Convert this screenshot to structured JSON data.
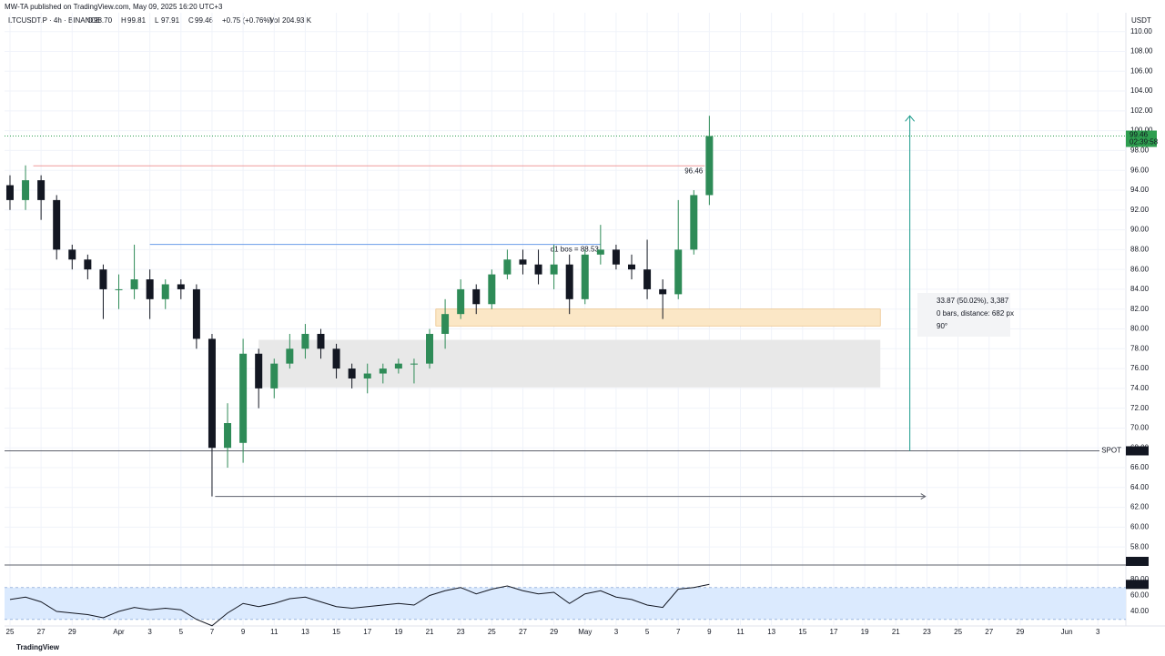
{
  "chart_data": {
    "type": "candlestick",
    "header": {
      "publisher": "MW-TA published on TradingView.com, May 09, 2025 16:20 UTC+3",
      "symbol": "LTCUSDT.P · 4h · BINANCE",
      "ohlc": [
        {
          "key": "O",
          "value": "98.70"
        },
        {
          "key": "H",
          "value": "99.81"
        },
        {
          "key": "L",
          "value": "97.91"
        },
        {
          "key": "C",
          "value": "99.46"
        }
      ],
      "change": "+0.75 (+0.76%)",
      "volume": {
        "key": "Vol",
        "value": "204.93 K"
      }
    },
    "currency": "USDT",
    "footer": "TradingView",
    "up_color": "#2e8b57",
    "down_color": "#131722",
    "x": [
      0,
      1,
      2,
      3,
      4,
      5,
      6,
      7,
      8,
      9,
      10,
      11,
      12,
      13,
      14,
      15,
      16,
      17,
      18,
      19,
      20,
      21,
      22,
      23,
      24,
      25,
      26,
      27,
      28,
      29,
      30,
      31,
      32,
      33,
      34,
      35,
      36,
      37,
      38,
      39,
      40,
      41,
      42,
      43,
      44,
      45
    ],
    "open": [
      94.5,
      93,
      95,
      93,
      88,
      87,
      86,
      84,
      84,
      85,
      83,
      84.5,
      84,
      79,
      68,
      68.5,
      77.5,
      74,
      76.5,
      78,
      79.5,
      78,
      76,
      75,
      75.5,
      76,
      76.5,
      76.5,
      79.5,
      81.5,
      84,
      82.5,
      85.5,
      87,
      86.5,
      85.5,
      86.5,
      83,
      87.5,
      88,
      86.5,
      86,
      84,
      83.5,
      88,
      93.5
    ],
    "high": [
      95.5,
      96.5,
      95.5,
      93.5,
      88.5,
      87.5,
      86.5,
      85.5,
      88.5,
      86,
      85,
      85,
      84.5,
      79.5,
      72.5,
      79,
      78,
      77,
      79.5,
      80.5,
      80,
      78.5,
      76.5,
      76.5,
      76.5,
      77,
      77,
      80,
      83,
      85,
      84.5,
      86,
      88,
      88,
      88,
      88.5,
      87.5,
      88,
      90.5,
      88.5,
      87.5,
      89,
      85,
      93,
      94,
      101.5
    ],
    "low": [
      92,
      92,
      91,
      87,
      86,
      85,
      81,
      82,
      83,
      81,
      82,
      83,
      78,
      63.1,
      66,
      66.5,
      72,
      73,
      76,
      77,
      77,
      75,
      74,
      73.5,
      74.5,
      75.5,
      74.5,
      76,
      78,
      81,
      81.5,
      82,
      85,
      85.5,
      84.5,
      84,
      81.5,
      82.5,
      86.5,
      86,
      85,
      83,
      81,
      83,
      87.5,
      92.5
    ],
    "close": [
      93,
      95,
      93,
      88,
      87,
      86,
      84,
      84,
      85,
      83,
      84.5,
      84,
      79,
      68,
      70.5,
      77.5,
      74,
      76.5,
      78,
      79.5,
      78,
      76,
      75,
      75.5,
      76,
      76.5,
      76.5,
      79.5,
      81.5,
      84,
      82.5,
      85.5,
      87,
      86.5,
      85.5,
      86.5,
      83,
      87.5,
      88,
      86.5,
      86,
      84,
      83.5,
      88,
      93.5,
      99.46
    ],
    "xlim": [
      -0.35,
      71.8
    ],
    "xticks": [
      {
        "value": 0,
        "label": "25"
      },
      {
        "value": 2,
        "label": "27"
      },
      {
        "value": 4,
        "label": "29"
      },
      {
        "value": 7,
        "label": "Apr"
      },
      {
        "value": 9,
        "label": "3"
      },
      {
        "value": 11,
        "label": "5"
      },
      {
        "value": 13,
        "label": "7"
      },
      {
        "value": 15,
        "label": "9"
      },
      {
        "value": 17,
        "label": "11"
      },
      {
        "value": 19,
        "label": "13"
      },
      {
        "value": 21,
        "label": "15"
      },
      {
        "value": 23,
        "label": "17"
      },
      {
        "value": 25,
        "label": "19"
      },
      {
        "value": 27,
        "label": "21"
      },
      {
        "value": 29,
        "label": "23"
      },
      {
        "value": 31,
        "label": "25"
      },
      {
        "value": 33,
        "label": "27"
      },
      {
        "value": 35,
        "label": "29"
      },
      {
        "value": 37,
        "label": "May"
      },
      {
        "value": 39,
        "label": "3"
      },
      {
        "value": 41,
        "label": "5"
      },
      {
        "value": 43,
        "label": "7"
      },
      {
        "value": 45,
        "label": "9"
      },
      {
        "value": 47,
        "label": "11"
      },
      {
        "value": 49,
        "label": "13"
      },
      {
        "value": 51,
        "label": "15"
      },
      {
        "value": 53,
        "label": "17"
      },
      {
        "value": 55,
        "label": "19"
      },
      {
        "value": 57,
        "label": "21"
      },
      {
        "value": 59,
        "label": "23"
      },
      {
        "value": 61,
        "label": "25"
      },
      {
        "value": 63,
        "label": "27"
      },
      {
        "value": 65,
        "label": "29"
      },
      {
        "value": 68,
        "label": "Jun"
      },
      {
        "value": 70,
        "label": "3"
      }
    ],
    "ylim": [
      56.18,
      111.9
    ],
    "yticks": [
      {
        "value": 58,
        "label": "58.00"
      },
      {
        "value": 60,
        "label": "60.00"
      },
      {
        "value": 62,
        "label": "62.00"
      },
      {
        "value": 64,
        "label": "64.00"
      },
      {
        "value": 66,
        "label": "66.00"
      },
      {
        "value": 68,
        "label": "68.00"
      },
      {
        "value": 70,
        "label": "70.00"
      },
      {
        "value": 72,
        "label": "72.00"
      },
      {
        "value": 74,
        "label": "74.00"
      },
      {
        "value": 76,
        "label": "76.00"
      },
      {
        "value": 78,
        "label": "78.00"
      },
      {
        "value": 80,
        "label": "80.00"
      },
      {
        "value": 82,
        "label": "82.00"
      },
      {
        "value": 84,
        "label": "84.00"
      },
      {
        "value": 86,
        "label": "86.00"
      },
      {
        "value": 88,
        "label": "88.00"
      },
      {
        "value": 90,
        "label": "90.00"
      },
      {
        "value": 92,
        "label": "92.00"
      },
      {
        "value": 94,
        "label": "94.00"
      },
      {
        "value": 96,
        "label": "96.00"
      },
      {
        "value": 98,
        "label": "98.00"
      },
      {
        "value": 100,
        "label": "100.00"
      },
      {
        "value": 102,
        "label": "102.00"
      },
      {
        "value": 104,
        "label": "104.00"
      },
      {
        "value": 106,
        "label": "106.00"
      },
      {
        "value": 108,
        "label": "108.00"
      },
      {
        "value": 110,
        "label": "110.00"
      }
    ],
    "grid": true,
    "last_price": {
      "value": 99.46,
      "label": "99.46",
      "countdown": "02:39:58",
      "color": "#2e9e4f"
    },
    "pane_marker": {
      "value": 56.18,
      "label": "56.18"
    },
    "spot": {
      "value": 67.7,
      "label": "67.70",
      "text": "SPOT"
    },
    "levels": [
      {
        "value": 96.46,
        "label": "96.46",
        "x": [
          1.5,
          44.7
        ],
        "color": "#ef9a9a",
        "text_color": "#e57373"
      },
      {
        "value": 88.53,
        "label": "d1 bos = 88.53",
        "x": [
          9,
          38
        ],
        "color": "#6a9be8",
        "text_color": "#131722"
      }
    ],
    "low_ray": {
      "value": 63.1,
      "x": [
        13.2,
        58.9
      ],
      "color": "#5d606b"
    },
    "target_arrow": {
      "x": 57.9,
      "from": 67.7,
      "to": 101.5,
      "color": "#1a9a8a"
    },
    "zones": [
      {
        "top": 78.9,
        "bottom": 74.1,
        "x": [
          16,
          56
        ],
        "color": "#e8e8e8"
      },
      {
        "top": 82.0,
        "bottom": 80.3,
        "x": [
          27.4,
          56
        ],
        "color": "#fbe7c6"
      }
    ],
    "measure": [
      "33.87 (50.02%), 3,387",
      "0 bars, distance: 682 px",
      "90°"
    ],
    "rsi": {
      "values": [
        55,
        58,
        52,
        40,
        38,
        36,
        32,
        40,
        45,
        42,
        44,
        42,
        30,
        22,
        38,
        50,
        46,
        50,
        56,
        58,
        52,
        46,
        44,
        46,
        48,
        50,
        48,
        60,
        66,
        70,
        62,
        68,
        72,
        66,
        62,
        64,
        50,
        62,
        66,
        58,
        55,
        48,
        45,
        68,
        70,
        73.96
      ],
      "value_label": "73.96",
      "ylim": [
        21.7,
        96
      ],
      "yticks": [
        {
          "value": 40,
          "label": "40.00"
        },
        {
          "value": 60,
          "label": "60.00"
        },
        {
          "value": 80,
          "label": "80.00"
        }
      ],
      "band": [
        30,
        70
      ],
      "band_color": "#dbeafe"
    }
  }
}
